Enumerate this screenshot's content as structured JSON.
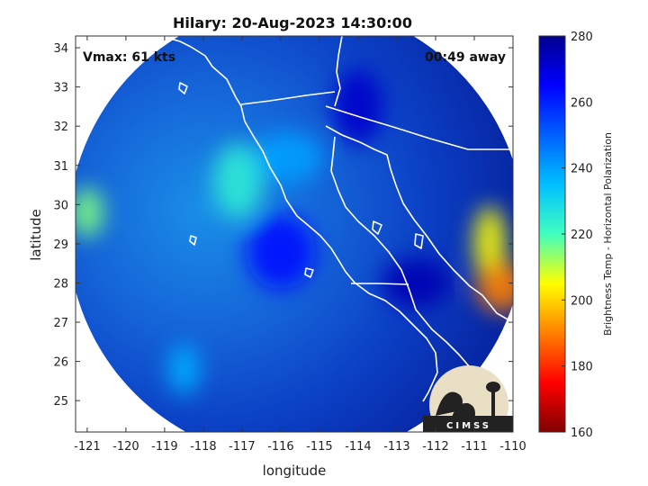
{
  "chart_data": {
    "type": "heatmap",
    "title": "Hilary: 20-Aug-2023 14:30:00",
    "annotations": {
      "left": "Vmax: 61 kts",
      "right": "00:49 away"
    },
    "xlabel": "longitude",
    "ylabel": "latitude",
    "xlim": [
      -121.3,
      -110
    ],
    "ylim": [
      24.2,
      34.3
    ],
    "xticks": [
      -121,
      -120,
      -119,
      -118,
      -117,
      -116,
      -115,
      -114,
      -113,
      -112,
      -111,
      -110
    ],
    "yticks": [
      25,
      26,
      27,
      28,
      29,
      30,
      31,
      32,
      33,
      34
    ],
    "colorbar": {
      "label": "Brightness Temp - Horizontal Polarization",
      "range": [
        160,
        280
      ],
      "ticks": [
        160,
        180,
        200,
        220,
        240,
        260,
        280
      ]
    },
    "swath": {
      "center_lon": -115.6,
      "center_lat": 29.3,
      "radius_deg": 5.9
    },
    "features": [
      {
        "lon": -121.0,
        "lat": 29.8,
        "tb": 215
      },
      {
        "lon": -117.1,
        "lat": 30.6,
        "tb": 225
      },
      {
        "lon": -115.8,
        "lat": 31.2,
        "tb": 240
      },
      {
        "lon": -110.6,
        "lat": 29.0,
        "tb": 205
      },
      {
        "lon": -110.3,
        "lat": 27.9,
        "tb": 190
      },
      {
        "lon": -116.0,
        "lat": 28.8,
        "tb": 262
      },
      {
        "lon": -118.5,
        "lat": 25.8,
        "tb": 238
      },
      {
        "lon": -114.0,
        "lat": 32.5,
        "tb": 272
      },
      {
        "lon": -112.5,
        "lat": 28.0,
        "tb": 275
      }
    ],
    "grid": false,
    "legend": "none"
  },
  "logo": {
    "text": "CIMSS"
  }
}
